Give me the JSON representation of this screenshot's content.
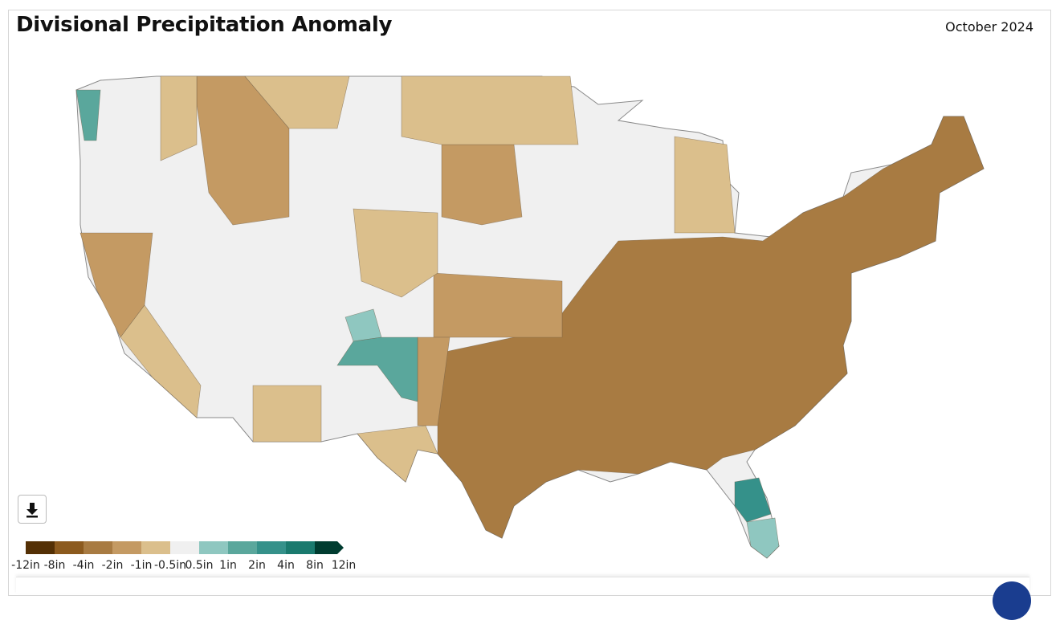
{
  "header": {
    "title": "Divisional Precipitation Anomaly",
    "period": "October 2024"
  },
  "legend": {
    "labels": [
      "-12in",
      "-8in",
      "-4in",
      "-2in",
      "-1in",
      "-0.5in",
      "0.5in",
      "1in",
      "2in",
      "4in",
      "8in",
      "12in"
    ],
    "colors": [
      "#543005",
      "#8c5a1e",
      "#a87b42",
      "#c49a63",
      "#dbbf8c",
      "#f0f0f0",
      "#8fc7c0",
      "#5aa79c",
      "#35918a",
      "#1a7a6e",
      "#003c30"
    ]
  }
}
